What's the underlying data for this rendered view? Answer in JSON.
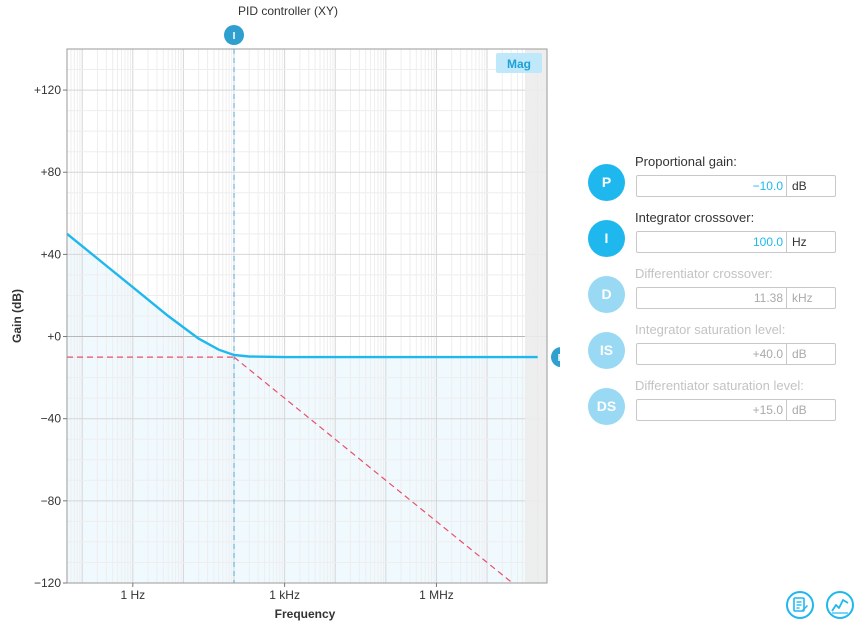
{
  "chart_data": {
    "type": "line",
    "title": "PID controller (XY)",
    "xlabel": "Frequency",
    "ylabel": "Gain (dB)",
    "x_scale": "log",
    "xlim": [
      0.0501,
      153000000.0
    ],
    "ylim": [
      -120,
      140
    ],
    "x_ticks": [
      {
        "value": 1,
        "label": "1 Hz"
      },
      {
        "value": 1000,
        "label": "1 kHz"
      },
      {
        "value": 1000000,
        "label": "1 MHz"
      }
    ],
    "y_ticks": [
      {
        "value": 120,
        "label": "+120"
      },
      {
        "value": 80,
        "label": "+80"
      },
      {
        "value": 40,
        "label": "+40"
      },
      {
        "value": 0,
        "label": "+0"
      },
      {
        "value": -40,
        "label": "−40"
      },
      {
        "value": -80,
        "label": "−80"
      },
      {
        "value": -120,
        "label": "−120"
      }
    ],
    "grid": true,
    "series": [
      {
        "color": "#1fb8ee",
        "style": "solid",
        "points": [
          [
            0.05,
            50
          ],
          [
            0.2,
            38
          ],
          [
            1,
            24
          ],
          [
            5,
            10
          ],
          [
            20,
            -1
          ],
          [
            50,
            -6.4
          ],
          [
            100,
            -9
          ],
          [
            200,
            -9.7
          ],
          [
            1000,
            -10
          ],
          [
            10000,
            -10
          ],
          [
            100000000,
            -10
          ]
        ]
      },
      {
        "color": "#e8506a",
        "style": "dashed",
        "points": [
          [
            0.05,
            -10
          ],
          [
            100,
            -10
          ]
        ]
      },
      {
        "color": "#e8506a",
        "style": "dashed",
        "points": [
          [
            100,
            -10
          ],
          [
            1000,
            -30
          ],
          [
            1000000,
            -90
          ],
          [
            30000000,
            -119.5
          ]
        ]
      }
    ],
    "markers": [
      {
        "label": "I",
        "axis": "x",
        "value": 100
      },
      {
        "label": "P",
        "axis": "y",
        "value": -10
      }
    ],
    "mag_button": "Mag",
    "colors": {
      "accent": "#1fb8ee",
      "asymptote": "#e8506a",
      "shade": "#eaf6fd",
      "grid": "#e4e4e4"
    }
  },
  "params": [
    {
      "badge": "P",
      "label": "Proportional gain:",
      "value": "−10.0",
      "unit": "dB",
      "active": true
    },
    {
      "badge": "I",
      "label": "Integrator crossover:",
      "value": "100.0",
      "unit": "Hz",
      "active": true
    },
    {
      "badge": "D",
      "label": "Differentiator crossover:",
      "value": "11.38",
      "unit": "kHz",
      "active": false
    },
    {
      "badge": "IS",
      "label": "Integrator saturation level:",
      "value": "+40.0",
      "unit": "dB",
      "active": false
    },
    {
      "badge": "DS",
      "label": "Differentiator saturation level:",
      "value": "+15.0",
      "unit": "dB",
      "active": false
    }
  ],
  "toolbar": {
    "report_icon": "report-icon",
    "chart_icon": "chart-icon"
  }
}
